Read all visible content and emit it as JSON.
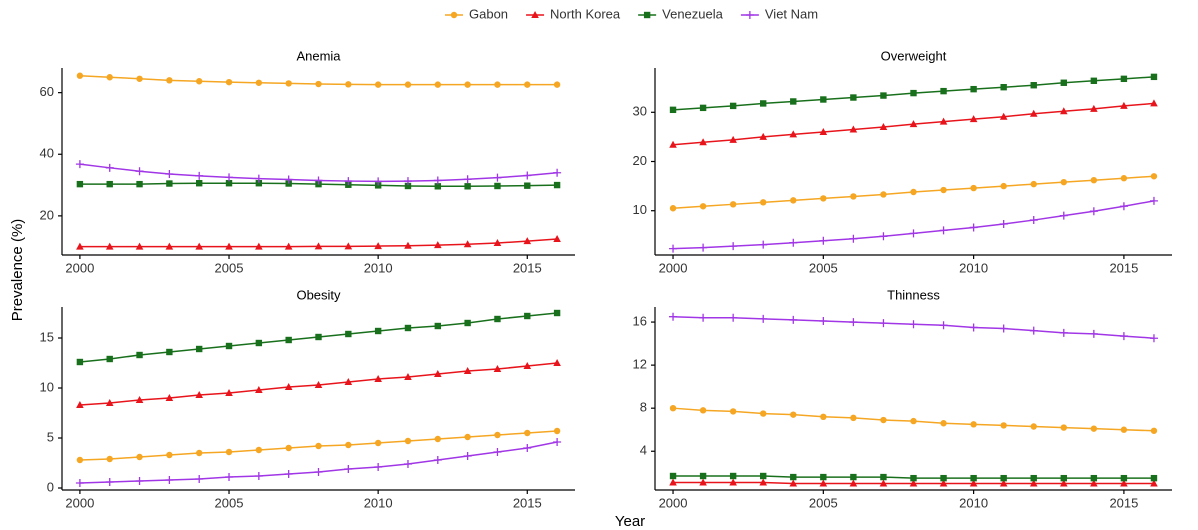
{
  "legend": [
    {
      "name": "Gabon",
      "color": "#f5a623",
      "marker": "circle"
    },
    {
      "name": "North Korea",
      "color": "#e8141b",
      "marker": "triangle"
    },
    {
      "name": "Venezuela",
      "color": "#19701c",
      "marker": "square"
    },
    {
      "name": "Viet Nam",
      "color": "#a136e6",
      "marker": "plus"
    }
  ],
  "xlabel": "Year",
  "ylabel": "Prevalence (%)",
  "chart_data": [
    {
      "type": "line",
      "title": "Anemia",
      "x": [
        2000,
        2001,
        2002,
        2003,
        2004,
        2005,
        2006,
        2007,
        2008,
        2009,
        2010,
        2011,
        2012,
        2013,
        2014,
        2015,
        2016
      ],
      "xlim": [
        1999.4,
        2016.6
      ],
      "xticks": [
        2000,
        2005,
        2010,
        2015
      ],
      "ylim": [
        7.3,
        68
      ],
      "yticks": [
        20,
        40,
        60
      ],
      "series": [
        {
          "values": [
            65.5,
            65,
            64.5,
            64,
            63.7,
            63.4,
            63.2,
            63,
            62.8,
            62.7,
            62.6,
            62.6,
            62.6,
            62.6,
            62.6,
            62.6,
            62.6
          ]
        },
        {
          "values": [
            10,
            10,
            10,
            10,
            10,
            10,
            10,
            10,
            10.1,
            10.1,
            10.2,
            10.3,
            10.5,
            10.8,
            11.2,
            11.8,
            12.5
          ]
        },
        {
          "values": [
            30.3,
            30.3,
            30.3,
            30.5,
            30.6,
            30.6,
            30.6,
            30.5,
            30.3,
            30.1,
            29.9,
            29.7,
            29.6,
            29.6,
            29.7,
            29.8,
            30
          ]
        },
        {
          "values": [
            36.8,
            35.6,
            34.5,
            33.6,
            33,
            32.5,
            32.1,
            31.8,
            31.5,
            31.3,
            31.2,
            31.3,
            31.5,
            31.9,
            32.4,
            33.1,
            34
          ]
        }
      ]
    },
    {
      "type": "line",
      "title": "Overweight",
      "x": [
        2000,
        2001,
        2002,
        2003,
        2004,
        2005,
        2006,
        2007,
        2008,
        2009,
        2010,
        2011,
        2012,
        2013,
        2014,
        2015,
        2016
      ],
      "xlim": [
        1999.4,
        2016.6
      ],
      "xticks": [
        2000,
        2005,
        2010,
        2015
      ],
      "ylim": [
        1,
        39
      ],
      "yticks": [
        10,
        20,
        30
      ],
      "series": [
        {
          "values": [
            10.5,
            10.9,
            11.3,
            11.7,
            12.1,
            12.5,
            12.9,
            13.3,
            13.8,
            14.2,
            14.6,
            15,
            15.4,
            15.8,
            16.2,
            16.6,
            17
          ]
        },
        {
          "values": [
            23.4,
            23.9,
            24.4,
            25,
            25.5,
            26,
            26.5,
            27,
            27.6,
            28.1,
            28.6,
            29.1,
            29.7,
            30.2,
            30.7,
            31.3,
            31.8
          ]
        },
        {
          "values": [
            30.5,
            30.9,
            31.3,
            31.8,
            32.2,
            32.6,
            33,
            33.4,
            33.9,
            34.3,
            34.7,
            35.1,
            35.5,
            36,
            36.4,
            36.8,
            37.2
          ]
        },
        {
          "values": [
            2.3,
            2.5,
            2.8,
            3.1,
            3.5,
            3.9,
            4.3,
            4.8,
            5.4,
            6,
            6.6,
            7.3,
            8.1,
            9,
            9.9,
            10.9,
            12
          ]
        }
      ]
    },
    {
      "type": "line",
      "title": "Obesity",
      "x": [
        2000,
        2001,
        2002,
        2003,
        2004,
        2005,
        2006,
        2007,
        2008,
        2009,
        2010,
        2011,
        2012,
        2013,
        2014,
        2015,
        2016
      ],
      "xlim": [
        1999.4,
        2016.6
      ],
      "xticks": [
        2000,
        2005,
        2010,
        2015
      ],
      "ylim": [
        -0.2,
        18.1
      ],
      "yticks": [
        0,
        5,
        10,
        15
      ],
      "series": [
        {
          "values": [
            2.8,
            2.9,
            3.1,
            3.3,
            3.5,
            3.6,
            3.8,
            4,
            4.2,
            4.3,
            4.5,
            4.7,
            4.9,
            5.1,
            5.3,
            5.5,
            5.7
          ]
        },
        {
          "values": [
            8.3,
            8.5,
            8.8,
            9,
            9.3,
            9.5,
            9.8,
            10.1,
            10.3,
            10.6,
            10.9,
            11.1,
            11.4,
            11.7,
            11.9,
            12.2,
            12.5
          ]
        },
        {
          "values": [
            12.6,
            12.9,
            13.3,
            13.6,
            13.9,
            14.2,
            14.5,
            14.8,
            15.1,
            15.4,
            15.7,
            16,
            16.2,
            16.5,
            16.9,
            17.2,
            17.5
          ]
        },
        {
          "values": [
            0.5,
            0.6,
            0.7,
            0.8,
            0.9,
            1.1,
            1.2,
            1.4,
            1.6,
            1.9,
            2.1,
            2.4,
            2.8,
            3.2,
            3.6,
            4,
            4.6
          ]
        }
      ]
    },
    {
      "type": "line",
      "title": "Thinness",
      "x": [
        2000,
        2001,
        2002,
        2003,
        2004,
        2005,
        2006,
        2007,
        2008,
        2009,
        2010,
        2011,
        2012,
        2013,
        2014,
        2015,
        2016
      ],
      "xlim": [
        1999.4,
        2016.6
      ],
      "xticks": [
        2000,
        2005,
        2010,
        2015
      ],
      "ylim": [
        0.4,
        17.4
      ],
      "yticks": [
        4,
        8,
        12,
        16
      ],
      "series": [
        {
          "values": [
            8,
            7.8,
            7.7,
            7.5,
            7.4,
            7.2,
            7.1,
            6.9,
            6.8,
            6.6,
            6.5,
            6.4,
            6.3,
            6.2,
            6.1,
            6,
            5.9
          ]
        },
        {
          "values": [
            1.1,
            1.1,
            1.1,
            1.1,
            1,
            1,
            1,
            1,
            1,
            1,
            1,
            1,
            1,
            1,
            1,
            1,
            1
          ]
        },
        {
          "values": [
            1.7,
            1.7,
            1.7,
            1.7,
            1.6,
            1.6,
            1.6,
            1.6,
            1.5,
            1.5,
            1.5,
            1.5,
            1.5,
            1.5,
            1.5,
            1.5,
            1.5
          ]
        },
        {
          "values": [
            16.5,
            16.4,
            16.4,
            16.3,
            16.2,
            16.1,
            16,
            15.9,
            15.8,
            15.7,
            15.5,
            15.4,
            15.2,
            15,
            14.9,
            14.7,
            14.5
          ]
        }
      ]
    }
  ]
}
